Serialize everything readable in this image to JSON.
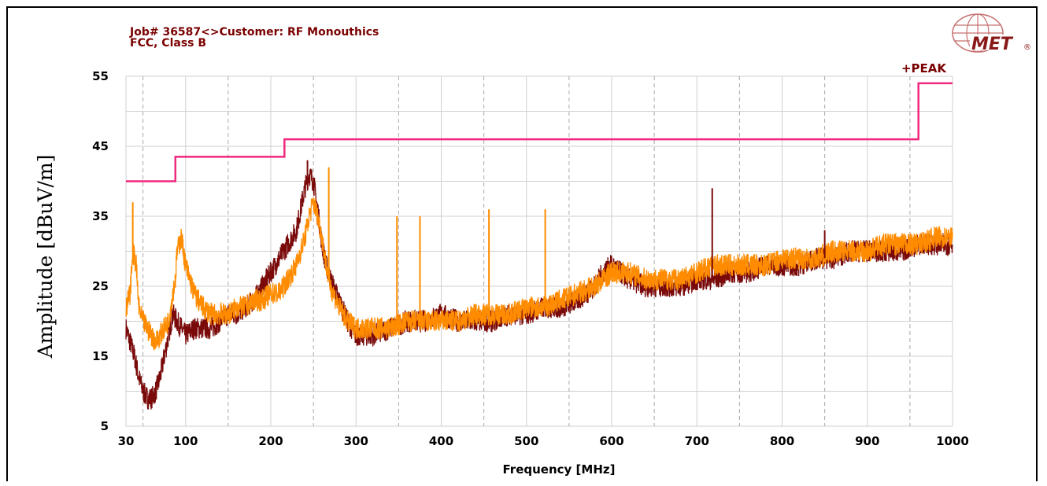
{
  "header": {
    "line1": "Job# 36587<>Customer: RF Monouthics",
    "line2": "FCC, Class B"
  },
  "logo": {
    "text": "MET",
    "registered": "®",
    "icon": "globe-logo-icon"
  },
  "colors": {
    "limit": "#f0287e",
    "series_dark": "#7a0a0a",
    "series_orange": "#ff8c00",
    "grid_solid": "#cfcfcf",
    "grid_dash": "#a8a8a8",
    "header_text": "#7a0000"
  },
  "chart_data": {
    "type": "line",
    "title": "",
    "xlabel": "Frequency [MHz]",
    "ylabel": "Amplitude [dBuV/m]",
    "xlim": [
      30,
      1000
    ],
    "ylim": [
      5,
      55
    ],
    "x_ticks": [
      30,
      100,
      200,
      300,
      400,
      500,
      600,
      700,
      800,
      900,
      1000
    ],
    "y_ticks": [
      5,
      15,
      25,
      35,
      45,
      55
    ],
    "grid": true,
    "legend": "+PEAK",
    "legend_placement": "top-right",
    "limit_line": {
      "name": "+PEAK",
      "steps": [
        {
          "x": [
            30,
            88
          ],
          "y": 40.0
        },
        {
          "x": [
            88,
            216
          ],
          "y": 43.5
        },
        {
          "x": [
            216,
            960
          ],
          "y": 46.0
        },
        {
          "x": [
            960,
            1000
          ],
          "y": 54.0
        }
      ]
    },
    "series": [
      {
        "color_role": "series_dark",
        "x": [
          30,
          35,
          40,
          45,
          50,
          55,
          60,
          65,
          70,
          75,
          80,
          85,
          90,
          95,
          100,
          110,
          120,
          130,
          140,
          150,
          160,
          170,
          180,
          190,
          200,
          210,
          220,
          230,
          235,
          240,
          245,
          250,
          255,
          260,
          265,
          270,
          280,
          290,
          300,
          320,
          340,
          360,
          380,
          400,
          420,
          440,
          460,
          480,
          500,
          520,
          540,
          560,
          580,
          590,
          600,
          620,
          640,
          660,
          680,
          700,
          720,
          740,
          760,
          780,
          800,
          820,
          840,
          860,
          880,
          900,
          920,
          940,
          960,
          980,
          1000
        ],
        "y": [
          19,
          17,
          15,
          12,
          10,
          9,
          9,
          10,
          12,
          15,
          18,
          21,
          20,
          19,
          18,
          19,
          19,
          19,
          20,
          21,
          21,
          22,
          23,
          25,
          27,
          29,
          31,
          33,
          36,
          39,
          41,
          40,
          36,
          31,
          28,
          26,
          23,
          20,
          18,
          18,
          19,
          20,
          20,
          21,
          20,
          20,
          20,
          21,
          21,
          22,
          22,
          23,
          25,
          27,
          28,
          26,
          25,
          25,
          25,
          26,
          26,
          27,
          27,
          28,
          28,
          28,
          29,
          29,
          30,
          30,
          30,
          30,
          31,
          31,
          31
        ]
      },
      {
        "color_role": "series_orange",
        "x": [
          30,
          35,
          38,
          42,
          45,
          50,
          55,
          60,
          65,
          70,
          75,
          80,
          85,
          88,
          90,
          95,
          100,
          110,
          120,
          130,
          140,
          150,
          160,
          170,
          180,
          190,
          200,
          210,
          220,
          230,
          240,
          245,
          250,
          255,
          260,
          265,
          270,
          280,
          290,
          300,
          320,
          340,
          360,
          380,
          400,
          420,
          440,
          460,
          480,
          500,
          520,
          540,
          560,
          580,
          590,
          600,
          620,
          640,
          660,
          680,
          700,
          720,
          740,
          760,
          780,
          800,
          820,
          840,
          860,
          880,
          900,
          920,
          940,
          960,
          980,
          1000
        ],
        "y": [
          22,
          24,
          30,
          28,
          22,
          20,
          19,
          18,
          17,
          18,
          19,
          20,
          24,
          26,
          30,
          32,
          28,
          24,
          22,
          21,
          21,
          21,
          22,
          22,
          23,
          23,
          24,
          24,
          26,
          28,
          32,
          35,
          37,
          35,
          32,
          28,
          25,
          22,
          20,
          19,
          19,
          19,
          20,
          20,
          20,
          20,
          21,
          21,
          21,
          22,
          22,
          23,
          24,
          25,
          26,
          27,
          27,
          26,
          26,
          26,
          27,
          28,
          28,
          28,
          28,
          29,
          29,
          29,
          30,
          30,
          30,
          31,
          31,
          31,
          32,
          32
        ]
      }
    ],
    "spikes": [
      {
        "x": 38,
        "y": 37,
        "color_role": "series_orange"
      },
      {
        "x": 243,
        "y": 43,
        "color_role": "series_dark"
      },
      {
        "x": 268,
        "y": 42,
        "color_role": "series_orange"
      },
      {
        "x": 348,
        "y": 35,
        "color_role": "series_orange"
      },
      {
        "x": 375,
        "y": 35,
        "color_role": "series_orange"
      },
      {
        "x": 456,
        "y": 36,
        "color_role": "series_orange"
      },
      {
        "x": 522,
        "y": 36,
        "color_role": "series_orange"
      },
      {
        "x": 718,
        "y": 39,
        "color_role": "series_dark"
      },
      {
        "x": 850,
        "y": 33,
        "color_role": "series_dark"
      }
    ]
  }
}
